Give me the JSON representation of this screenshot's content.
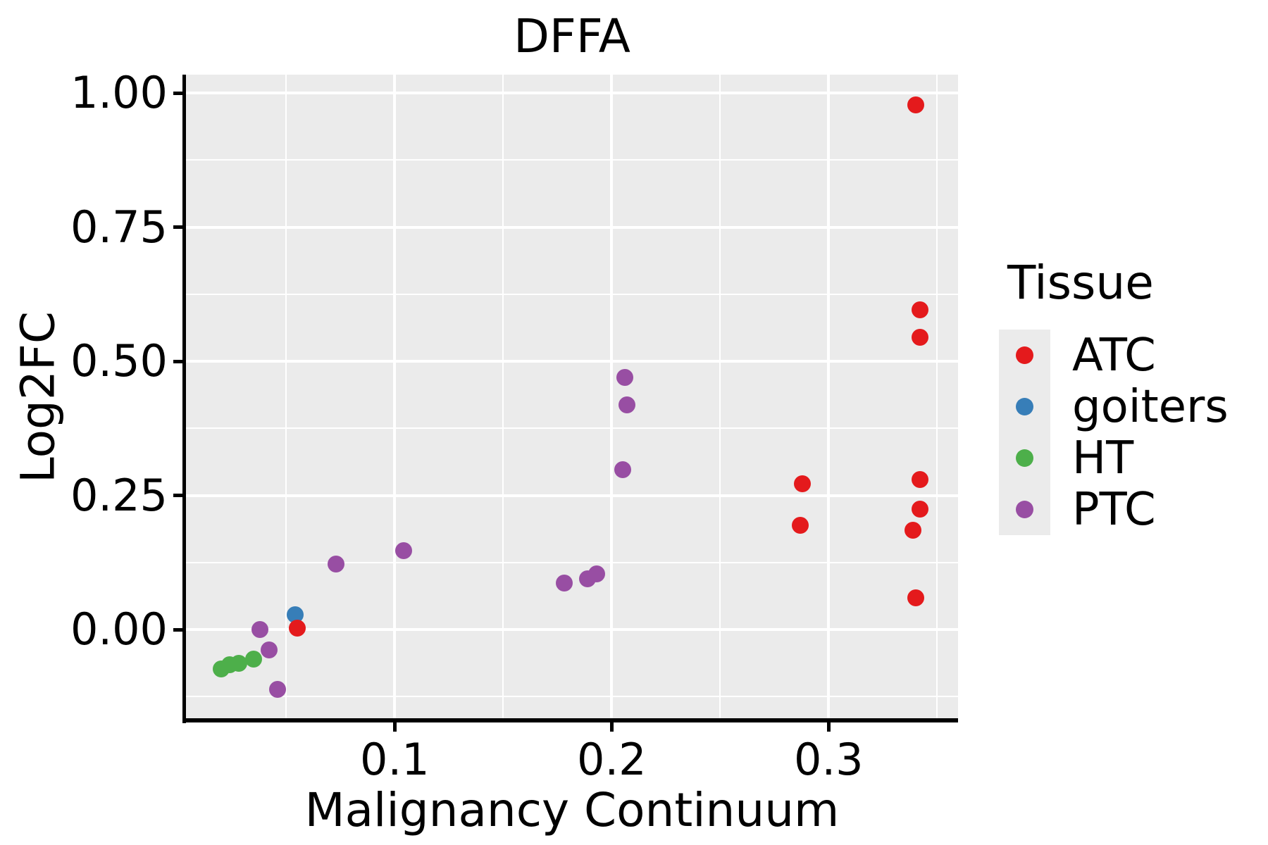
{
  "chart_data": {
    "type": "scatter",
    "title": "DFFA",
    "xlabel": "Malignancy Continuum",
    "ylabel": "Log2FC",
    "xlim": [
      0.002,
      0.358
    ],
    "ylim": [
      -0.166,
      1.033
    ],
    "grid": "on",
    "x_ticks": {
      "values": [
        0.1,
        0.2,
        0.3
      ],
      "labels": [
        "0.1",
        "0.2",
        "0.3"
      ]
    },
    "x_minor": [
      0.05,
      0.15,
      0.25,
      0.35
    ],
    "y_ticks": {
      "values": [
        0.0,
        0.25,
        0.5,
        0.75,
        1.0
      ],
      "labels": [
        "0.00",
        "0.25",
        "0.50",
        "0.75",
        "1.00"
      ]
    },
    "y_minor": [
      -0.125,
      0.125,
      0.375,
      0.625,
      0.875
    ],
    "legend": {
      "title": "Tissue",
      "position": "right"
    },
    "series": [
      {
        "name": "ATC",
        "color": "#E41A1C",
        "points": [
          [
            0.34,
            0.978
          ],
          [
            0.342,
            0.596
          ],
          [
            0.342,
            0.545
          ],
          [
            0.342,
            0.28
          ],
          [
            0.342,
            0.224
          ],
          [
            0.339,
            0.185
          ],
          [
            0.34,
            0.059
          ],
          [
            0.288,
            0.271
          ],
          [
            0.287,
            0.194
          ],
          [
            0.055,
            0.003
          ]
        ]
      },
      {
        "name": "goiters",
        "color": "#377EB8",
        "points": [
          [
            0.054,
            0.027
          ]
        ]
      },
      {
        "name": "HT",
        "color": "#4DAF4A",
        "points": [
          [
            0.02,
            -0.073
          ],
          [
            0.024,
            -0.065
          ],
          [
            0.028,
            -0.063
          ],
          [
            0.035,
            -0.055
          ]
        ]
      },
      {
        "name": "PTC",
        "color": "#984EA3",
        "points": [
          [
            0.206,
            0.47
          ],
          [
            0.207,
            0.419
          ],
          [
            0.205,
            0.298
          ],
          [
            0.104,
            0.147
          ],
          [
            0.073,
            0.122
          ],
          [
            0.193,
            0.104
          ],
          [
            0.189,
            0.095
          ],
          [
            0.178,
            0.086
          ],
          [
            0.038,
            0.0
          ],
          [
            0.042,
            -0.038
          ],
          [
            0.046,
            -0.111
          ]
        ]
      }
    ],
    "styles": {
      "panel_background": "#EBEBEB",
      "grid_color": "#FFFFFF",
      "axis_color": "#000000",
      "text_color": "#000000"
    }
  }
}
